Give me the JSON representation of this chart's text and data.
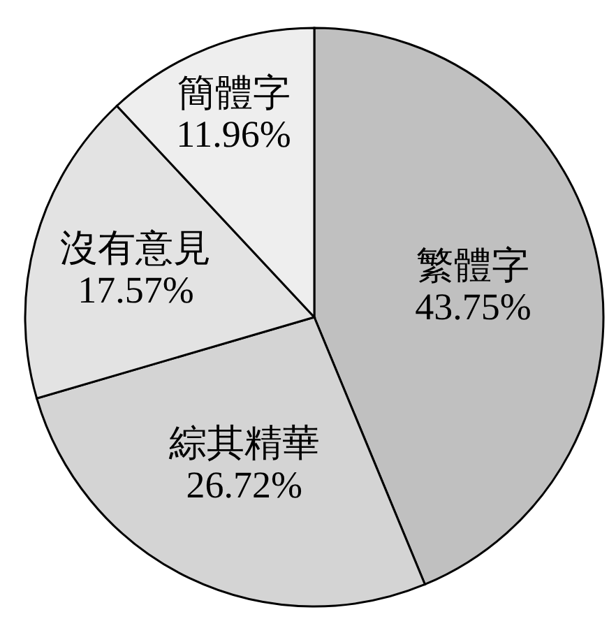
{
  "chart_data": {
    "type": "pie",
    "categories": [
      "繁體字",
      "綜其精華",
      "沒有意見",
      "簡體字"
    ],
    "values": [
      43.75,
      26.72,
      17.57,
      11.96
    ],
    "value_labels": [
      "43.75%",
      "26.72%",
      "17.57%",
      "11.96%"
    ],
    "colors": [
      "#c0c0c0",
      "#d4d4d4",
      "#e3e3e3",
      "#eeeeee"
    ]
  }
}
